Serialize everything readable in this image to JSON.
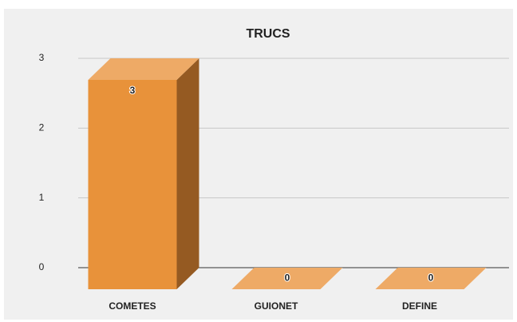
{
  "chart_data": {
    "type": "bar3d",
    "title": "TRUCS",
    "categories": [
      "COMETES",
      "GUIONET",
      "DEFINE"
    ],
    "values": [
      3,
      0,
      0
    ],
    "color": "#e8923a",
    "ylim": [
      0,
      3
    ],
    "yticks": [
      0,
      1,
      2,
      3
    ],
    "grid": true
  }
}
